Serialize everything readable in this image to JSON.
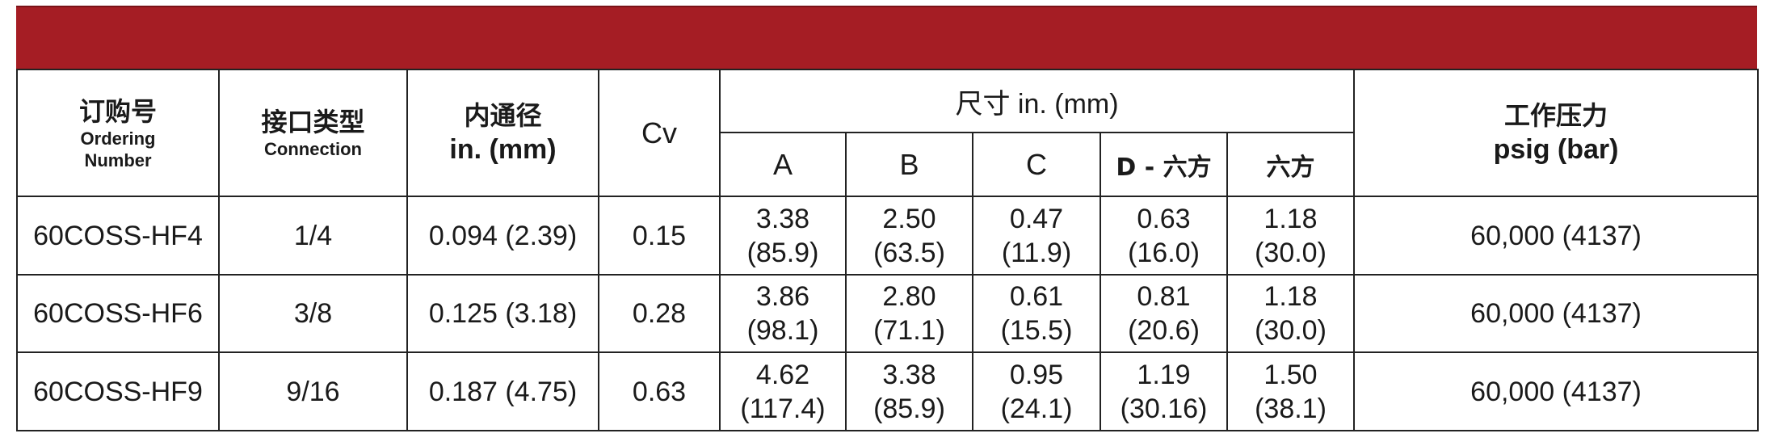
{
  "header": {
    "ordering": {
      "zh": "订购号",
      "en1": "Ordering",
      "en2": "Number"
    },
    "connection": {
      "zh": "接口类型",
      "en": "Connection"
    },
    "bore": {
      "zh": "内通径",
      "en": "in. (mm)"
    },
    "cv": "Cv",
    "dimensions": "尺寸 in. (mm)",
    "dim_cols": [
      "A",
      "B",
      "C",
      "D - 六方",
      "六方"
    ],
    "pressure": {
      "zh": "工作压力",
      "en": "psig (bar)"
    }
  },
  "rows": [
    {
      "part": "60COSS-HF4",
      "connection": "1/4",
      "bore": "0.094 (2.39)",
      "cv": "0.15",
      "dims": [
        [
          "3.38",
          "(85.9)"
        ],
        [
          "2.50",
          "(63.5)"
        ],
        [
          "0.47",
          "(11.9)"
        ],
        [
          "0.63",
          "(16.0)"
        ],
        [
          "1.18",
          "(30.0)"
        ]
      ],
      "pressure": "60,000 (4137)"
    },
    {
      "part": "60COSS-HF6",
      "connection": "3/8",
      "bore": "0.125 (3.18)",
      "cv": "0.28",
      "dims": [
        [
          "3.86",
          "(98.1)"
        ],
        [
          "2.80",
          "(71.1)"
        ],
        [
          "0.61",
          "(15.5)"
        ],
        [
          "0.81",
          "(20.6)"
        ],
        [
          "1.18",
          "(30.0)"
        ]
      ],
      "pressure": "60,000 (4137)"
    },
    {
      "part": "60COSS-HF9",
      "connection": "9/16",
      "bore": "0.187 (4.75)",
      "cv": "0.63",
      "dims": [
        [
          "4.62",
          "(117.4)"
        ],
        [
          "3.38",
          "(85.9)"
        ],
        [
          "0.95",
          "(24.1)"
        ],
        [
          "1.19",
          "(30.16)"
        ],
        [
          "1.50",
          "(38.1)"
        ]
      ],
      "pressure": "60,000 (4137)"
    }
  ],
  "colors": {
    "banner": "#a51d24",
    "border": "#222222"
  }
}
